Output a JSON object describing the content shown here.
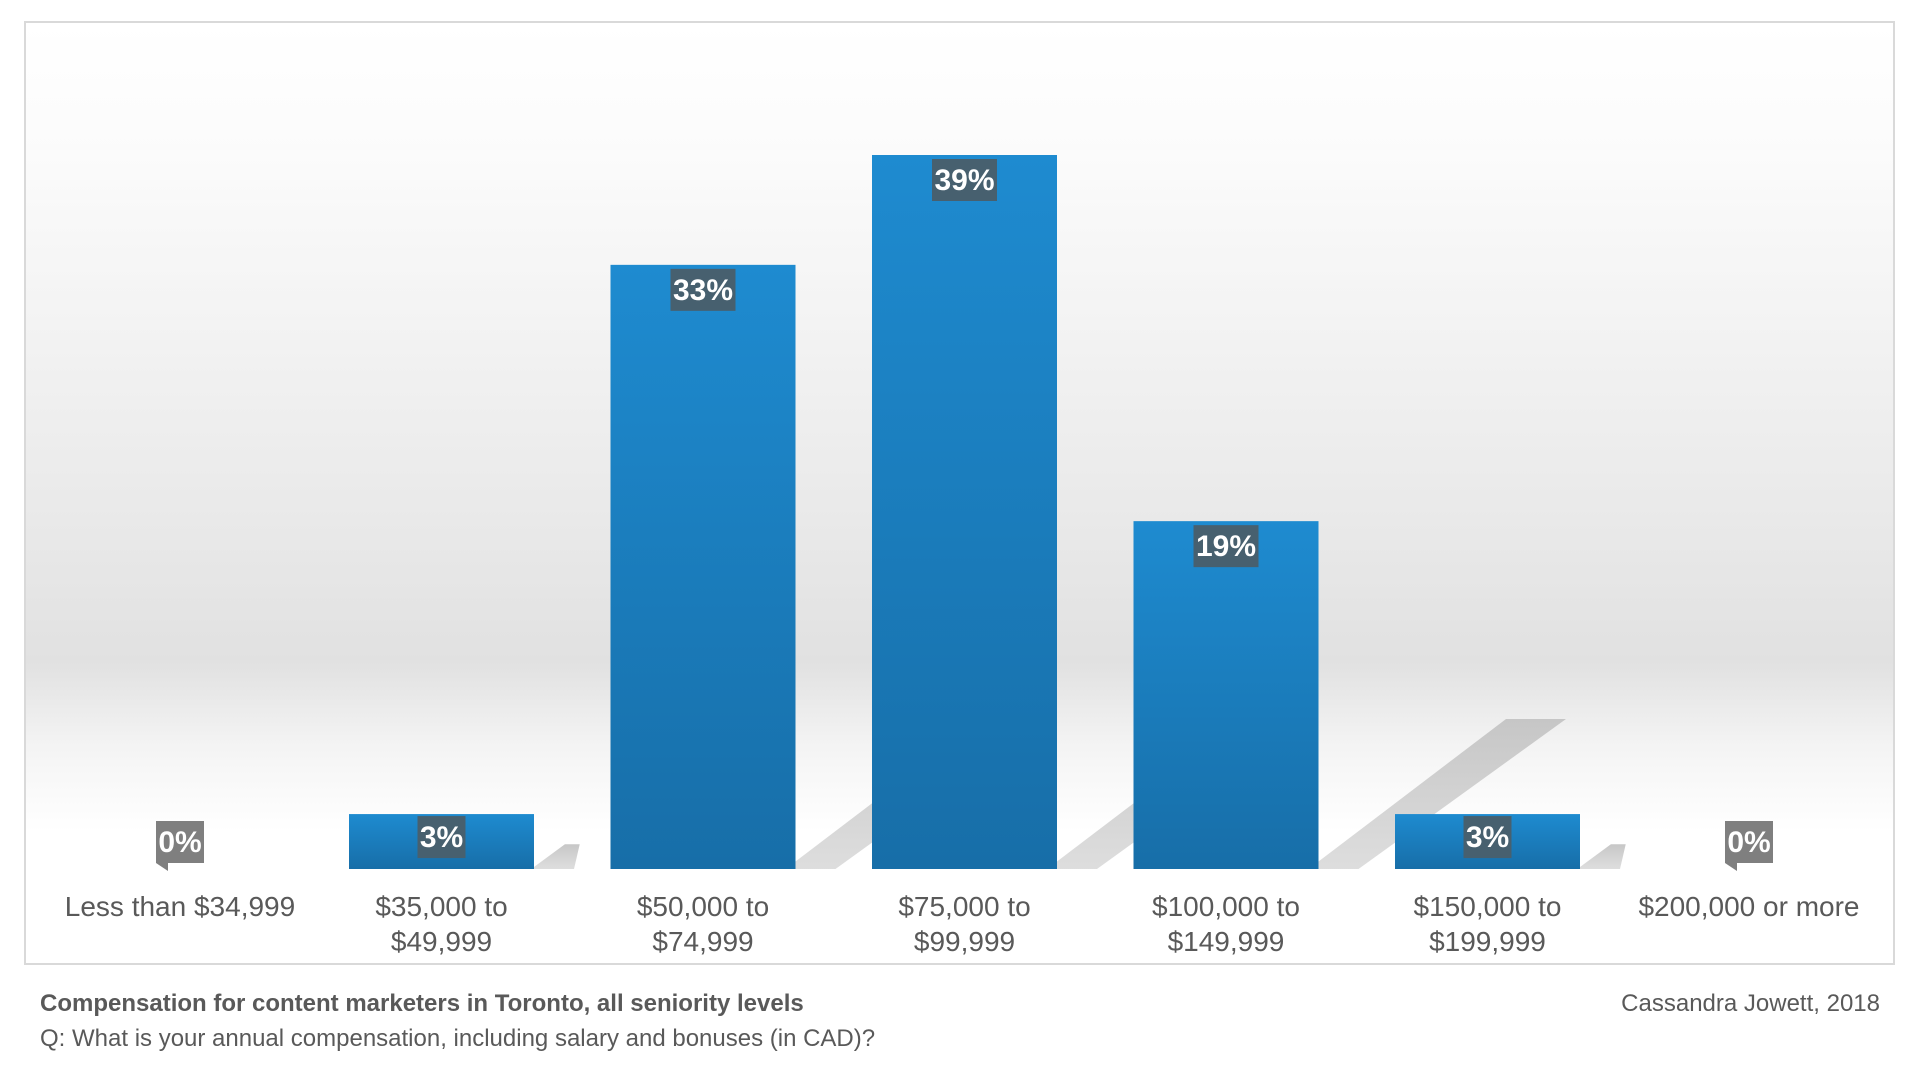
{
  "chart_data": {
    "type": "bar",
    "title": "Compensation for content marketers in Toronto, all seniority levels",
    "subtitle": "Q: What is your annual compensation, including salary and bonuses (in CAD)?",
    "credit": "Cassandra Jowett, 2018",
    "xlabel": "",
    "ylabel": "",
    "ylim": [
      0,
      40
    ],
    "grid": false,
    "legend": "none",
    "categories": [
      [
        "Less than $34,999"
      ],
      [
        "$35,000 to",
        "$49,999"
      ],
      [
        "$50,000 to",
        "$74,999"
      ],
      [
        "$75,000 to",
        "$99,999"
      ],
      [
        "$100,000 to",
        "$149,999"
      ],
      [
        "$150,000 to",
        "$199,999"
      ],
      [
        "$200,000 or more"
      ]
    ],
    "values": [
      0,
      3,
      33,
      39,
      19,
      3,
      0
    ],
    "value_labels": [
      "0%",
      "3%",
      "33%",
      "39%",
      "19%",
      "3%",
      "0%"
    ],
    "colors": {
      "bar_top": "#1e8bd0",
      "bar_bottom": "#176ea8",
      "label_box": "#47606f",
      "zero_label_box": "#7f7f7f",
      "label_text": "#ffffff",
      "axis_text": "#595959",
      "shadow": "#bdbdbd"
    }
  }
}
